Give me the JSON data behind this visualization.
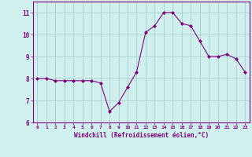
{
  "x": [
    0,
    1,
    2,
    3,
    4,
    5,
    6,
    7,
    8,
    9,
    10,
    11,
    12,
    13,
    14,
    15,
    16,
    17,
    18,
    19,
    20,
    21,
    22,
    23
  ],
  "y": [
    8.0,
    8.0,
    7.9,
    7.9,
    7.9,
    7.9,
    7.9,
    7.8,
    6.5,
    6.9,
    7.6,
    8.3,
    10.1,
    10.4,
    11.0,
    11.0,
    10.5,
    10.4,
    9.7,
    9.0,
    9.0,
    9.1,
    8.9,
    8.3
  ],
  "line_color": "#800080",
  "marker": "D",
  "marker_size": 2.0,
  "bg_color": "#d0f0ee",
  "grid_color": "#aacfcc",
  "xlabel": "Windchill (Refroidissement éolien,°C)",
  "xlabel_color": "#800080",
  "tick_color": "#800080",
  "xlim": [
    -0.5,
    23.5
  ],
  "ylim": [
    6.0,
    11.5
  ],
  "yticks": [
    6,
    7,
    8,
    9,
    10,
    11
  ],
  "xticks": [
    0,
    1,
    2,
    3,
    4,
    5,
    6,
    7,
    8,
    9,
    10,
    11,
    12,
    13,
    14,
    15,
    16,
    17,
    18,
    19,
    20,
    21,
    22,
    23
  ],
  "spine_color": "#800080",
  "figsize": [
    3.2,
    2.0
  ],
  "dpi": 100
}
